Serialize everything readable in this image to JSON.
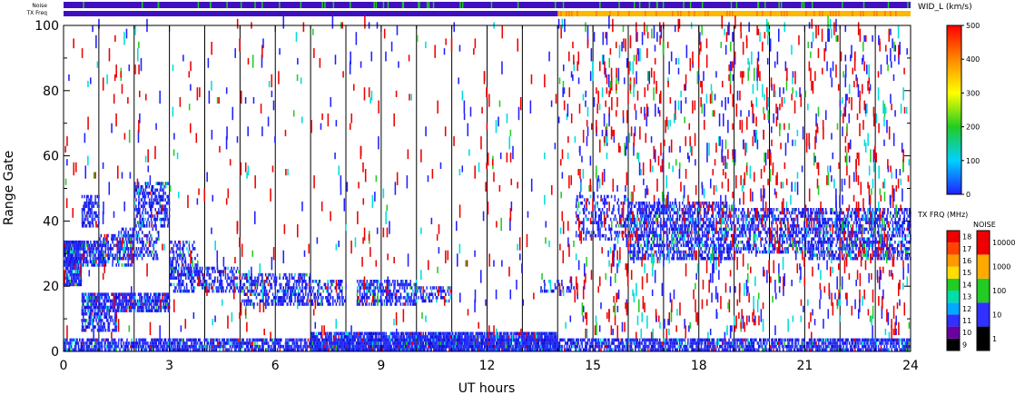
{
  "chart_data": {
    "type": "scatter",
    "xlabel": "UT hours",
    "ylabel": "Range Gate",
    "xlim": [
      0,
      24
    ],
    "ylim": [
      0,
      100
    ],
    "xticks": [
      0,
      3,
      6,
      9,
      12,
      15,
      18,
      21,
      24
    ],
    "yticks": [
      0,
      20,
      40,
      60,
      80,
      100
    ],
    "scan_lines_hours": [
      1,
      2,
      3,
      4,
      5,
      6,
      7,
      8,
      9,
      10,
      11,
      12,
      13,
      14,
      15,
      16,
      17,
      18,
      19,
      20,
      21,
      22,
      23
    ],
    "top_strips": {
      "noise_label": "Noise",
      "txfreq_label": "TX Freq",
      "txfreq_change_hour": 14.0
    },
    "scatter_regions": [
      {
        "x0": 0.0,
        "x1": 0.5,
        "y0": 20,
        "y1": 34,
        "fill": 0.9,
        "palette": "blue"
      },
      {
        "x0": 0.0,
        "x1": 1.2,
        "y0": 26,
        "y1": 34,
        "fill": 0.75,
        "palette": "blue"
      },
      {
        "x0": 0.5,
        "x1": 1.0,
        "y0": 38,
        "y1": 48,
        "fill": 0.6,
        "palette": "blue"
      },
      {
        "x0": 1.0,
        "x1": 2.0,
        "y0": 26,
        "y1": 36,
        "fill": 0.45,
        "palette": "blue"
      },
      {
        "x0": 2.0,
        "x1": 3.0,
        "y0": 38,
        "y1": 52,
        "fill": 0.55,
        "palette": "blue"
      },
      {
        "x0": 1.5,
        "x1": 2.7,
        "y0": 28,
        "y1": 38,
        "fill": 0.4,
        "palette": "blue"
      },
      {
        "x0": 0.5,
        "x1": 3.0,
        "y0": 12,
        "y1": 18,
        "fill": 0.8,
        "palette": "blue"
      },
      {
        "x0": 0.5,
        "x1": 1.5,
        "y0": 6,
        "y1": 12,
        "fill": 0.6,
        "palette": "blue"
      },
      {
        "x0": 3.0,
        "x1": 3.8,
        "y0": 22,
        "y1": 34,
        "fill": 0.45,
        "palette": "blue"
      },
      {
        "x0": 3.0,
        "x1": 5.0,
        "y0": 18,
        "y1": 26,
        "fill": 0.5,
        "palette": "blue"
      },
      {
        "x0": 5.0,
        "x1": 7.0,
        "y0": 14,
        "y1": 24,
        "fill": 0.5,
        "palette": "blue"
      },
      {
        "x0": 7.0,
        "x1": 8.0,
        "y0": 14,
        "y1": 22,
        "fill": 0.45,
        "palette": "blue"
      },
      {
        "x0": 8.3,
        "x1": 10.0,
        "y0": 14,
        "y1": 22,
        "fill": 0.6,
        "palette": "blue"
      },
      {
        "x0": 10.0,
        "x1": 11.0,
        "y0": 15,
        "y1": 20,
        "fill": 0.4,
        "palette": "blue"
      },
      {
        "x0": 13.5,
        "x1": 14.5,
        "y0": 18,
        "y1": 22,
        "fill": 0.3,
        "palette": "blue"
      },
      {
        "x0": 14.5,
        "x1": 16.0,
        "y0": 34,
        "y1": 48,
        "fill": 0.3,
        "palette": "blue"
      },
      {
        "x0": 16.0,
        "x1": 19.0,
        "y0": 28,
        "y1": 46,
        "fill": 0.55,
        "palette": "blue"
      },
      {
        "x0": 19.0,
        "x1": 21.0,
        "y0": 30,
        "y1": 44,
        "fill": 0.5,
        "palette": "blue"
      },
      {
        "x0": 21.0,
        "x1": 24.0,
        "y0": 28,
        "y1": 44,
        "fill": 0.55,
        "palette": "blue"
      },
      {
        "x0": 0.0,
        "x1": 24.0,
        "y0": 0,
        "y1": 4,
        "fill": 0.75,
        "palette": "blue"
      },
      {
        "x0": 7.0,
        "x1": 14.0,
        "y0": 0,
        "y1": 6,
        "fill": 0.85,
        "palette": "blue"
      },
      {
        "x0": 0.0,
        "x1": 24.0,
        "y0": 4,
        "y1": 100,
        "fill": 0.012,
        "palette": "sparse"
      },
      {
        "x0": 14.0,
        "x1": 24.0,
        "y0": 4,
        "y1": 100,
        "fill": 0.03,
        "palette": "sparse"
      }
    ],
    "colorbars": [
      {
        "title": "WID_L (km/s)",
        "ticks": [
          0,
          100,
          200,
          300,
          400,
          500
        ],
        "min": 0,
        "max": 500
      },
      {
        "title": "TX FRQ (MHz)",
        "ticks": [
          9,
          10,
          11,
          12,
          13,
          14,
          15,
          16,
          17,
          18
        ],
        "min": 9,
        "max": 18
      },
      {
        "title": "NOISE",
        "ticks": [
          1,
          10,
          100,
          1000,
          10000
        ],
        "log": true
      }
    ]
  },
  "colors": {
    "axis": "#000000",
    "blue": "#2020ff",
    "red": "#ee0000",
    "cyan": "#00dddd",
    "green": "#22cc22",
    "yellow": "#ffcc00",
    "noise_strip": "#4010c0",
    "txfreq_strip_a": "#4010c0",
    "txfreq_strip_b": "#ffb800"
  }
}
